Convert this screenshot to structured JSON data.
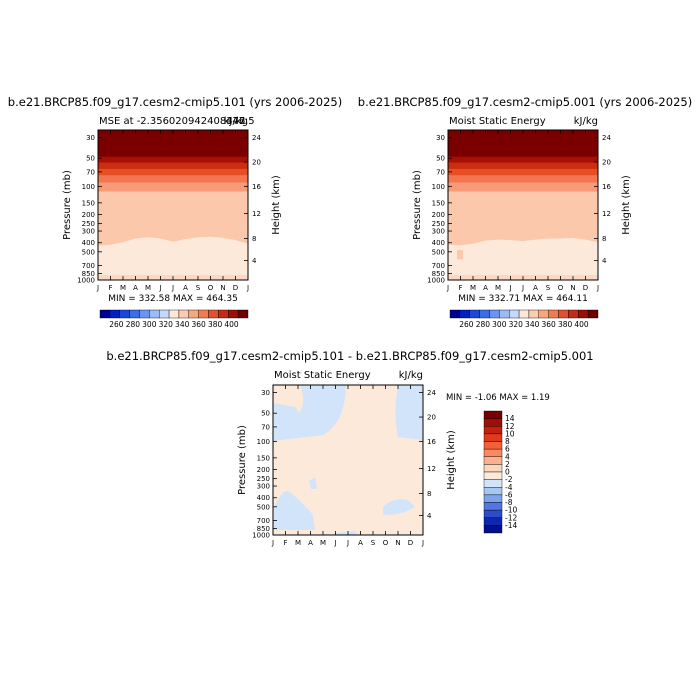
{
  "page": {
    "background": "#ffffff"
  },
  "chart_data": [
    {
      "type": "heatmap",
      "title": "b.e21.BRCP85.f09_g17.cesm2-cmip5.101 (yrs 2006-2025)",
      "subtitle_left": "MSE at -2.356020942408376",
      "subtitle_right": "kJ/kg",
      "subtitle_overlap": "447.5",
      "xlabel": "",
      "ylabel": "Pressure (mb)",
      "y2label": "Height (km)",
      "x_ticks": [
        "J",
        "F",
        "M",
        "A",
        "M",
        "J",
        "J",
        "A",
        "S",
        "O",
        "N",
        "D",
        "J"
      ],
      "y_ticks": [
        "30",
        "50",
        "70",
        "100",
        "150",
        "200",
        "250",
        "300",
        "400",
        "500",
        "700",
        "850",
        "1000"
      ],
      "y2_ticks": [
        "24",
        "20",
        "16",
        "12",
        "8",
        "4"
      ],
      "stats": "MIN = 332.58  MAX = 464.35",
      "min": 332.58,
      "max": 464.35,
      "colorbar": {
        "labels": [
          "260",
          "280",
          "300",
          "320",
          "340",
          "360",
          "380",
          "400"
        ],
        "colors": [
          "#000090",
          "#0020c0",
          "#1c48d8",
          "#3a6ee8",
          "#6a94f0",
          "#9cbaf6",
          "#c6d8fa",
          "#fde8d6",
          "#fccbb0",
          "#f9a67c",
          "#f27c52",
          "#e0522e",
          "#c42a14",
          "#9a0e04",
          "#6e0000"
        ]
      },
      "levels_top_down": [
        {
          "color": "#7a0000",
          "pres_bottom": 50
        },
        {
          "color": "#a80f05",
          "pres_bottom": 60
        },
        {
          "color": "#cc2c10",
          "pres_bottom": 70
        },
        {
          "color": "#e64e25",
          "pres_bottom": 82
        },
        {
          "color": "#f27650",
          "pres_bottom": 97
        },
        {
          "color": "#f89a78",
          "pres_bottom": 125
        },
        {
          "color": "#fcc8ac",
          "pres_bottom": "mid"
        },
        {
          "color": "#fde9d9",
          "pres_bottom": 900
        },
        {
          "color": "#fcd8c4",
          "pres_bottom": 1000
        }
      ]
    },
    {
      "type": "heatmap",
      "title": "b.e21.BRCP85.f09_g17.cesm2-cmip5.001 (yrs 2006-2025)",
      "subtitle_left": "Moist Static Energy",
      "subtitle_right": "kJ/kg",
      "xlabel": "",
      "ylabel": "Pressure (mb)",
      "y2label": "Height (km)",
      "x_ticks": [
        "J",
        "F",
        "M",
        "A",
        "M",
        "J",
        "J",
        "A",
        "S",
        "O",
        "N",
        "D",
        "J"
      ],
      "y_ticks": [
        "30",
        "50",
        "70",
        "100",
        "150",
        "200",
        "250",
        "300",
        "400",
        "500",
        "700",
        "850",
        "1000"
      ],
      "y2_ticks": [
        "24",
        "20",
        "16",
        "12",
        "8",
        "4"
      ],
      "stats": "MIN = 332.71  MAX = 464.11",
      "min": 332.71,
      "max": 464.11,
      "colorbar": {
        "labels": [
          "260",
          "280",
          "300",
          "320",
          "340",
          "360",
          "380",
          "400"
        ],
        "colors": [
          "#000090",
          "#0020c0",
          "#1c48d8",
          "#3a6ee8",
          "#6a94f0",
          "#9cbaf6",
          "#c6d8fa",
          "#fde8d6",
          "#fccbb0",
          "#f9a67c",
          "#f27c52",
          "#e0522e",
          "#c42a14",
          "#9a0e04",
          "#6e0000"
        ]
      }
    },
    {
      "type": "heatmap",
      "title": "b.e21.BRCP85.f09_g17.cesm2-cmip5.101 - b.e21.BRCP85.f09_g17.cesm2-cmip5.001",
      "subtitle_left": "Moist Static Energy",
      "subtitle_right": "kJ/kg",
      "xlabel": "",
      "ylabel": "Pressure (mb)",
      "y2label": "Height (km)",
      "x_ticks": [
        "J",
        "F",
        "M",
        "A",
        "M",
        "J",
        "J",
        "A",
        "S",
        "O",
        "N",
        "D",
        "J"
      ],
      "y_ticks": [
        "30",
        "50",
        "70",
        "100",
        "150",
        "200",
        "250",
        "300",
        "400",
        "500",
        "700",
        "850",
        "1000"
      ],
      "y2_ticks": [
        "24",
        "20",
        "16",
        "12",
        "8",
        "4"
      ],
      "stats": "MIN =  -1.06  MAX =    1.19",
      "min": -1.06,
      "max": 1.19,
      "colorbar": {
        "labels": [
          "14",
          "12",
          "10",
          "8",
          "6",
          "4",
          "2",
          "0",
          "-2",
          "-4",
          "-6",
          "-8",
          "-10",
          "-12",
          "-14"
        ],
        "colors": [
          "#7a0000",
          "#a00f05",
          "#c42010",
          "#e03a1c",
          "#f2603a",
          "#f88a62",
          "#fbb090",
          "#fdd4bc",
          "#fde9d9",
          "#d2e4fa",
          "#a8c6f4",
          "#7ea2ec",
          "#5278e0",
          "#2c4ccc",
          "#0c28b0",
          "#00108a"
        ]
      },
      "positive_color": "#fde9d9",
      "negative_color": "#d2e4fa"
    }
  ]
}
